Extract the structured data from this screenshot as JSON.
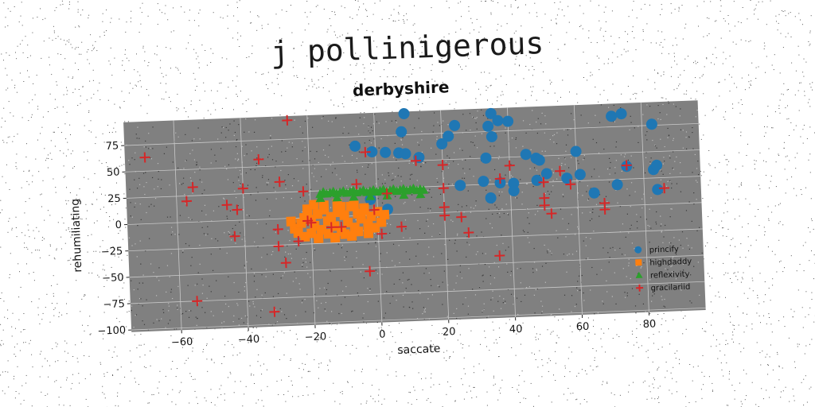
{
  "figure": {
    "suptitle": "j pollinigerous"
  },
  "chart_data": {
    "type": "scatter",
    "title": "derbyshire",
    "xlabel": "saccate",
    "ylabel": "rehumiliating",
    "xlim": [
      -75,
      97
    ],
    "ylim": [
      -102,
      97
    ],
    "xticks": [
      -60,
      -40,
      -20,
      0,
      20,
      40,
      60,
      80
    ],
    "yticks": [
      -100,
      -75,
      -50,
      -25,
      0,
      25,
      50,
      75
    ],
    "grid": true,
    "legend_position": "lower-right",
    "plot_background": "#808080",
    "series": [
      {
        "name": "princify",
        "color": "#1f77b4",
        "marker": "circle",
        "points": [
          [
            9,
            95
          ],
          [
            35,
            92
          ],
          [
            37,
            85
          ],
          [
            40,
            84
          ],
          [
            34,
            80
          ],
          [
            24,
            82
          ],
          [
            8,
            78
          ],
          [
            22,
            72
          ],
          [
            20,
            65
          ],
          [
            35,
            70
          ],
          [
            -6,
            66
          ],
          [
            -1,
            60
          ],
          [
            3,
            59
          ],
          [
            7,
            58
          ],
          [
            9,
            57
          ],
          [
            13,
            53
          ],
          [
            33,
            50
          ],
          [
            48,
            48
          ],
          [
            49,
            46
          ],
          [
            45,
            52
          ],
          [
            60,
            53
          ],
          [
            71,
            85
          ],
          [
            74,
            87
          ],
          [
            83,
            76
          ],
          [
            61,
            31
          ],
          [
            75,
            37
          ],
          [
            83,
            33
          ],
          [
            84,
            37
          ],
          [
            32,
            28
          ],
          [
            37,
            26
          ],
          [
            41,
            25
          ],
          [
            48,
            27
          ],
          [
            57,
            28
          ],
          [
            41,
            18
          ],
          [
            51,
            33
          ],
          [
            25,
            25
          ],
          [
            3,
            5
          ],
          [
            -2,
            15
          ],
          [
            34,
            12
          ],
          [
            84,
            14
          ],
          [
            72,
            20
          ],
          [
            65,
            13
          ]
        ]
      },
      {
        "name": "highdaddy",
        "color": "#ff7f0e",
        "marker": "square",
        "points": [
          [
            -25,
            -10
          ],
          [
            -23,
            -5
          ],
          [
            -22,
            0
          ],
          [
            -21,
            5
          ],
          [
            -20,
            -2
          ],
          [
            -19,
            -8
          ],
          [
            -18,
            3
          ],
          [
            -17,
            -12
          ],
          [
            -16,
            7
          ],
          [
            -15,
            -4
          ],
          [
            -14,
            0
          ],
          [
            -13,
            -9
          ],
          [
            -12,
            4
          ],
          [
            -11,
            -14
          ],
          [
            -10,
            1
          ],
          [
            -9,
            -6
          ],
          [
            -8,
            9
          ],
          [
            -7,
            -11
          ],
          [
            -6,
            2
          ],
          [
            -5,
            -3
          ],
          [
            -4,
            5
          ],
          [
            -3,
            -8
          ],
          [
            -2,
            -1
          ],
          [
            -1,
            -12
          ],
          [
            0,
            3
          ],
          [
            1,
            -7
          ],
          [
            2,
            0
          ],
          [
            -24,
            -14
          ],
          [
            -20,
            -15
          ],
          [
            -15,
            -16
          ],
          [
            -10,
            -17
          ],
          [
            -6,
            -15
          ],
          [
            -3,
            -17
          ],
          [
            -21,
            8
          ],
          [
            -16,
            11
          ],
          [
            -11,
            9
          ],
          [
            -7,
            10
          ],
          [
            -4,
            7
          ],
          [
            -18,
            -20
          ],
          [
            -13,
            -20
          ],
          [
            -8,
            -19
          ],
          [
            -22,
            -18
          ],
          [
            -19,
            12
          ],
          [
            -12,
            12
          ],
          [
            -26,
            -3
          ]
        ]
      },
      {
        "name": "reflexivity",
        "color": "#2ca02c",
        "marker": "triangle",
        "points": [
          [
            -17,
            22
          ],
          [
            -16,
            24
          ],
          [
            -15,
            22
          ],
          [
            -14,
            23
          ],
          [
            -13,
            24
          ],
          [
            -12,
            22
          ],
          [
            -11,
            23
          ],
          [
            -10,
            24
          ],
          [
            -9,
            22
          ],
          [
            -8,
            23
          ],
          [
            -7,
            24
          ],
          [
            -6,
            22
          ],
          [
            -5,
            23
          ],
          [
            -4,
            24
          ],
          [
            -3,
            22
          ],
          [
            -2,
            23
          ],
          [
            -1,
            24
          ],
          [
            0,
            22
          ],
          [
            1,
            23
          ],
          [
            2,
            24
          ],
          [
            3,
            22
          ],
          [
            4,
            23
          ],
          [
            5,
            24
          ],
          [
            6,
            22
          ],
          [
            7,
            23
          ],
          [
            8,
            24
          ],
          [
            9,
            22
          ],
          [
            10,
            23
          ],
          [
            11,
            24
          ],
          [
            12,
            22
          ],
          [
            13,
            23
          ],
          [
            14,
            22
          ],
          [
            -17,
            18
          ],
          [
            -12,
            18
          ],
          [
            -7,
            18
          ],
          [
            -2,
            18
          ],
          [
            3,
            18
          ],
          [
            8,
            18
          ],
          [
            13,
            18
          ]
        ]
      },
      {
        "name": "gracilariid",
        "color": "#d62728",
        "marker": "plus",
        "points": [
          [
            -69,
            63
          ],
          [
            -57,
            20
          ],
          [
            -55,
            33
          ],
          [
            -45,
            15
          ],
          [
            -43,
            -15
          ],
          [
            -42,
            10
          ],
          [
            -40,
            30
          ],
          [
            -35,
            57
          ],
          [
            -32,
            -88
          ],
          [
            -30,
            -26
          ],
          [
            -29,
            35
          ],
          [
            -28,
            -42
          ],
          [
            -26,
            93
          ],
          [
            -24,
            -22
          ],
          [
            -22,
            25
          ],
          [
            -21,
            -3
          ],
          [
            -20,
            -5
          ],
          [
            -14,
            -10
          ],
          [
            -11,
            -10
          ],
          [
            -6,
            30
          ],
          [
            -3,
            -53
          ],
          [
            -3,
            60
          ],
          [
            1,
            -18
          ],
          [
            3,
            20
          ],
          [
            12,
            50
          ],
          [
            20,
            45
          ],
          [
            20,
            23
          ],
          [
            20,
            5
          ],
          [
            20,
            -3
          ],
          [
            25,
            -5
          ],
          [
            27,
            -20
          ],
          [
            36,
            -43
          ],
          [
            37,
            30
          ],
          [
            40,
            42
          ],
          [
            50,
            25
          ],
          [
            50,
            10
          ],
          [
            50,
            3
          ],
          [
            52,
            -5
          ],
          [
            55,
            35
          ],
          [
            58,
            22
          ],
          [
            68,
            3
          ],
          [
            68,
            -3
          ],
          [
            75,
            38
          ],
          [
            86,
            15
          ],
          [
            -30,
            -10
          ],
          [
            -55,
            -75
          ],
          [
            -1,
            5
          ],
          [
            7,
            -12
          ]
        ]
      }
    ]
  }
}
